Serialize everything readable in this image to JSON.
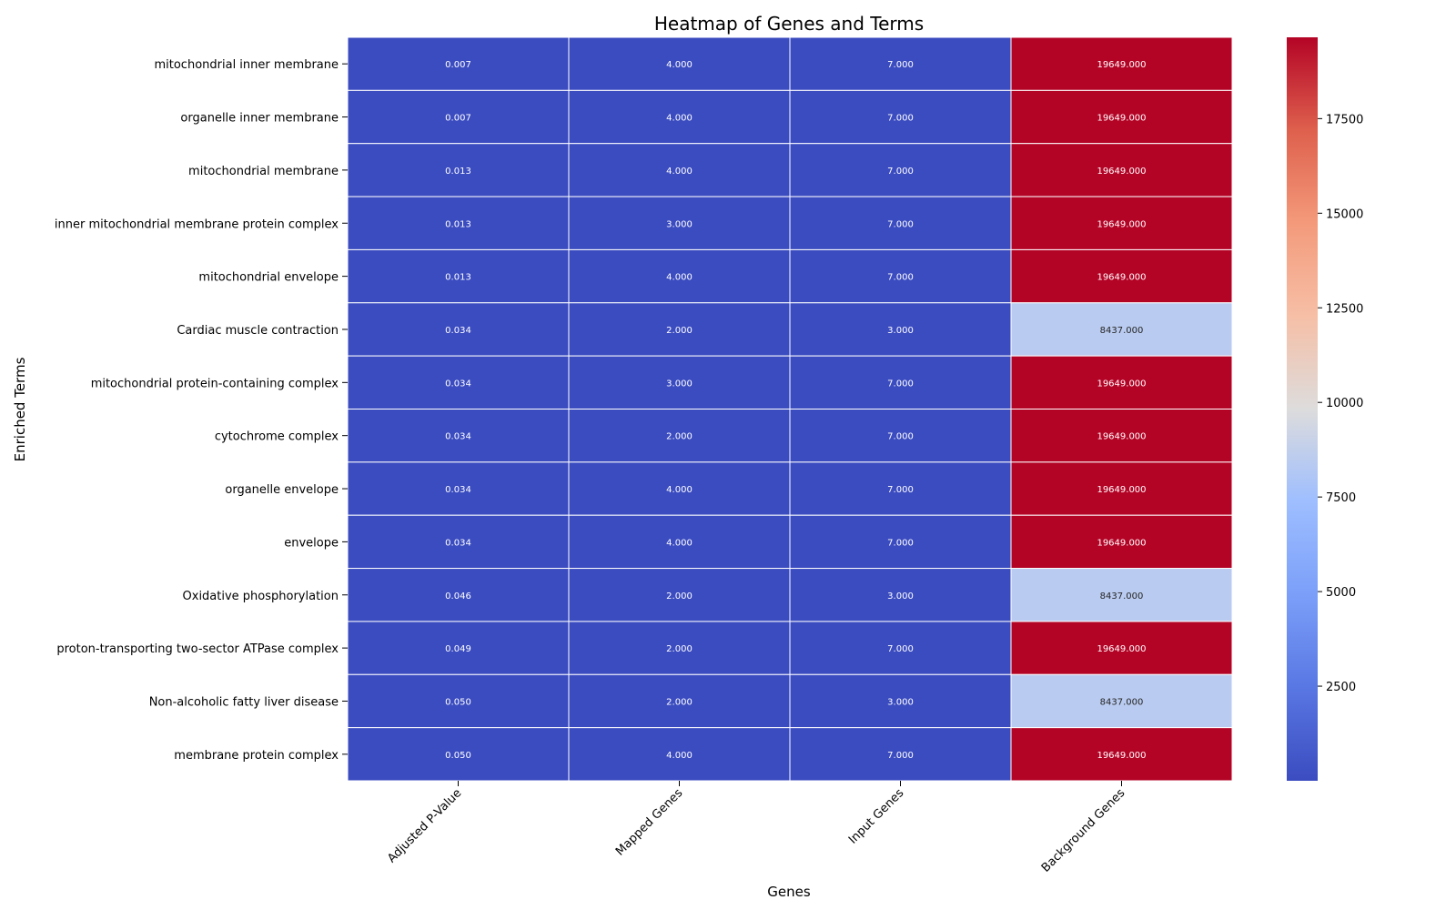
{
  "chart_data": {
    "type": "heatmap",
    "title": "Heatmap of Genes and Terms",
    "xlabel": "Genes",
    "ylabel": "Enriched Terms",
    "columns": [
      "Adjusted P-Value",
      "Mapped Genes",
      "Input Genes",
      "Background Genes"
    ],
    "rows": [
      "mitochondrial inner membrane",
      "organelle inner membrane",
      "mitochondrial membrane",
      "inner mitochondrial membrane protein complex",
      "mitochondrial envelope",
      "Cardiac muscle contraction",
      "mitochondrial protein-containing complex",
      "cytochrome complex",
      "organelle envelope",
      "envelope",
      "Oxidative phosphorylation",
      "proton-transporting two-sector ATPase complex",
      "Non-alcoholic fatty liver disease",
      "membrane protein complex"
    ],
    "values": [
      [
        0.007,
        4,
        7,
        19649
      ],
      [
        0.007,
        4,
        7,
        19649
      ],
      [
        0.013,
        4,
        7,
        19649
      ],
      [
        0.013,
        3,
        7,
        19649
      ],
      [
        0.013,
        4,
        7,
        19649
      ],
      [
        0.034,
        2,
        3,
        8437
      ],
      [
        0.034,
        3,
        7,
        19649
      ],
      [
        0.034,
        2,
        7,
        19649
      ],
      [
        0.034,
        4,
        7,
        19649
      ],
      [
        0.034,
        4,
        7,
        19649
      ],
      [
        0.046,
        2,
        3,
        8437
      ],
      [
        0.049,
        2,
        7,
        19649
      ],
      [
        0.05,
        2,
        3,
        8437
      ],
      [
        0.05,
        4,
        7,
        19649
      ]
    ],
    "cell_labels": [
      [
        "0.007",
        "4.000",
        "7.000",
        "19649.000"
      ],
      [
        "0.007",
        "4.000",
        "7.000",
        "19649.000"
      ],
      [
        "0.013",
        "4.000",
        "7.000",
        "19649.000"
      ],
      [
        "0.013",
        "3.000",
        "7.000",
        "19649.000"
      ],
      [
        "0.013",
        "4.000",
        "7.000",
        "19649.000"
      ],
      [
        "0.034",
        "2.000",
        "3.000",
        "8437.000"
      ],
      [
        "0.034",
        "3.000",
        "7.000",
        "19649.000"
      ],
      [
        "0.034",
        "2.000",
        "7.000",
        "19649.000"
      ],
      [
        "0.034",
        "4.000",
        "7.000",
        "19649.000"
      ],
      [
        "0.034",
        "4.000",
        "7.000",
        "19649.000"
      ],
      [
        "0.046",
        "2.000",
        "3.000",
        "8437.000"
      ],
      [
        "0.049",
        "2.000",
        "7.000",
        "19649.000"
      ],
      [
        "0.050",
        "2.000",
        "3.000",
        "8437.000"
      ],
      [
        "0.050",
        "4.000",
        "7.000",
        "19649.000"
      ]
    ],
    "colorbar": {
      "colormap": "coolwarm",
      "range": [
        0.007,
        19649
      ],
      "ticks": [
        2500,
        5000,
        7500,
        10000,
        12500,
        15000,
        17500
      ],
      "tick_labels": [
        "2500",
        "5000",
        "7500",
        "10000",
        "12500",
        "15000",
        "17500"
      ]
    },
    "grid": false,
    "legend": "colorbar-right"
  }
}
